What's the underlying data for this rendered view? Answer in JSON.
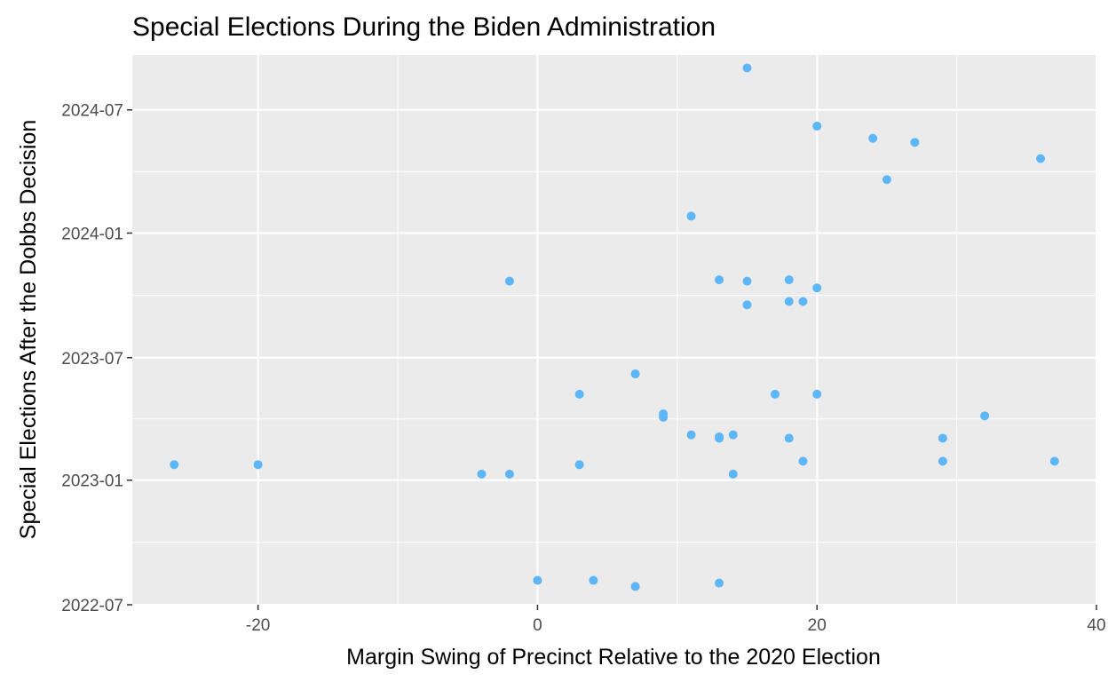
{
  "chart_data": {
    "type": "scatter",
    "title": "Special Elections During the Biden Administration",
    "xlabel": "Margin Swing of Precinct Relative to the 2020 Election",
    "ylabel": "Special Elections After the Dobbs Decision",
    "xlim": [
      -29,
      40
    ],
    "ylim": [
      "2022-07-01",
      "2024-09-20"
    ],
    "x_ticks": [
      -20,
      0,
      20,
      40
    ],
    "x_tick_labels": [
      "-20",
      "0",
      "20",
      "40"
    ],
    "y_ticks": [
      "2022-07-01",
      "2023-01-01",
      "2023-07-01",
      "2024-01-01",
      "2024-07-01"
    ],
    "y_tick_labels": [
      "2022-07",
      "2023-01",
      "2023-07",
      "2024-01",
      "2024-07"
    ],
    "grid": true,
    "point_color": "#5DB6F7",
    "panel_background": "#EBEBEB",
    "grid_color": "#FFFFFF",
    "points": [
      {
        "x": 15,
        "y": "2024-09-01"
      },
      {
        "x": 20,
        "y": "2024-06-07"
      },
      {
        "x": 24,
        "y": "2024-05-20"
      },
      {
        "x": 27,
        "y": "2024-05-14"
      },
      {
        "x": 36,
        "y": "2024-04-20"
      },
      {
        "x": 25,
        "y": "2024-03-20"
      },
      {
        "x": 11,
        "y": "2024-01-26"
      },
      {
        "x": 13,
        "y": "2023-10-24"
      },
      {
        "x": 18,
        "y": "2023-10-24"
      },
      {
        "x": 15,
        "y": "2023-10-22"
      },
      {
        "x": -2,
        "y": "2023-10-22"
      },
      {
        "x": 20,
        "y": "2023-10-12"
      },
      {
        "x": 18,
        "y": "2023-09-22"
      },
      {
        "x": 19,
        "y": "2023-09-22"
      },
      {
        "x": 15,
        "y": "2023-09-17"
      },
      {
        "x": 7,
        "y": "2023-06-07"
      },
      {
        "x": 3,
        "y": "2023-05-08"
      },
      {
        "x": 17,
        "y": "2023-05-08"
      },
      {
        "x": 20,
        "y": "2023-05-08"
      },
      {
        "x": 9,
        "y": "2023-04-09"
      },
      {
        "x": 9,
        "y": "2023-04-04"
      },
      {
        "x": 32,
        "y": "2023-04-06"
      },
      {
        "x": 11,
        "y": "2023-03-09"
      },
      {
        "x": 14,
        "y": "2023-03-09"
      },
      {
        "x": 13,
        "y": "2023-03-06"
      },
      {
        "x": 13,
        "y": "2023-03-04"
      },
      {
        "x": 18,
        "y": "2023-03-04"
      },
      {
        "x": 29,
        "y": "2023-03-04"
      },
      {
        "x": 29,
        "y": "2023-01-29"
      },
      {
        "x": 19,
        "y": "2023-01-29"
      },
      {
        "x": 37,
        "y": "2023-01-29"
      },
      {
        "x": -26,
        "y": "2023-01-24"
      },
      {
        "x": -20,
        "y": "2023-01-24"
      },
      {
        "x": 3,
        "y": "2023-01-24"
      },
      {
        "x": -4,
        "y": "2023-01-10"
      },
      {
        "x": -2,
        "y": "2023-01-10"
      },
      {
        "x": 14,
        "y": "2023-01-10"
      },
      {
        "x": 0,
        "y": "2022-08-06"
      },
      {
        "x": 4,
        "y": "2022-08-06"
      },
      {
        "x": 13,
        "y": "2022-08-02"
      },
      {
        "x": 7,
        "y": "2022-07-28"
      }
    ]
  }
}
